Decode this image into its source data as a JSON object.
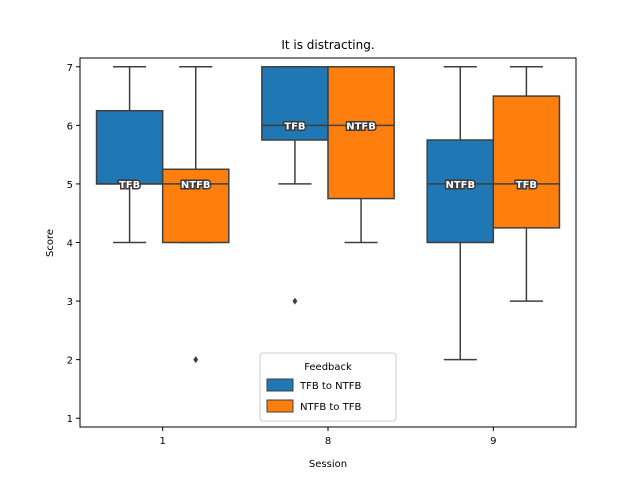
{
  "chart_data": {
    "type": "box",
    "title": "It is distracting.",
    "xlabel": "Session",
    "ylabel": "Score",
    "categories": [
      "1",
      "8",
      "9"
    ],
    "ylim": [
      0.85,
      7.15
    ],
    "yticks": [
      1,
      2,
      3,
      4,
      5,
      6,
      7
    ],
    "grid": false,
    "legend": {
      "title": "Feedback",
      "placement": "bottom-center",
      "entries": [
        "TFB to NTFB",
        "NTFB to TFB"
      ]
    },
    "series": [
      {
        "name": "TFB to NTFB",
        "color": "#1f77b4",
        "boxes": [
          {
            "category": "1",
            "whisker_low": 4,
            "q1": 5,
            "median": 5,
            "q3": 6.25,
            "whisker_high": 7,
            "outliers": [],
            "label": "TFB"
          },
          {
            "category": "8",
            "whisker_low": 5,
            "q1": 5.75,
            "median": 6,
            "q3": 7,
            "whisker_high": 7,
            "outliers": [
              3
            ],
            "label": "TFB"
          },
          {
            "category": "9",
            "whisker_low": 2,
            "q1": 4,
            "median": 5,
            "q3": 5.75,
            "whisker_high": 7,
            "outliers": [],
            "label": "NTFB"
          }
        ]
      },
      {
        "name": "NTFB to TFB",
        "color": "#ff7f0e",
        "boxes": [
          {
            "category": "1",
            "whisker_low": 4,
            "q1": 4,
            "median": 5,
            "q3": 5.25,
            "whisker_high": 7,
            "outliers": [
              2
            ],
            "label": "NTFB"
          },
          {
            "category": "8",
            "whisker_low": 4,
            "q1": 4.75,
            "median": 6,
            "q3": 7,
            "whisker_high": 7,
            "outliers": [],
            "label": "NTFB"
          },
          {
            "category": "9",
            "whisker_low": 3,
            "q1": 4.25,
            "median": 5,
            "q3": 6.5,
            "whisker_high": 7,
            "outliers": [],
            "label": "TFB"
          }
        ]
      }
    ]
  }
}
